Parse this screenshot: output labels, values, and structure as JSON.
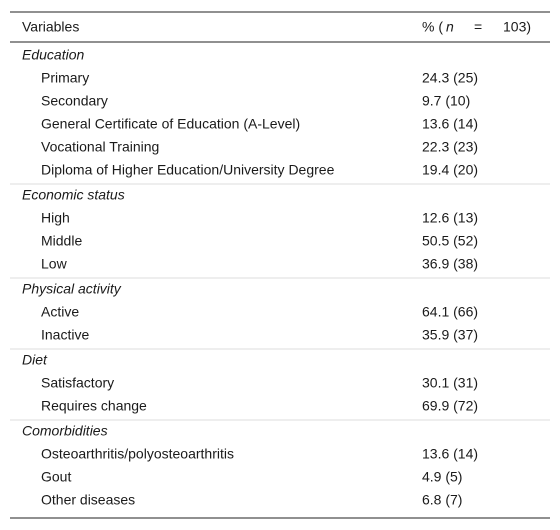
{
  "table": {
    "header": {
      "variables": "Variables",
      "percent": [
        "% (",
        "n",
        "=",
        "103)"
      ]
    },
    "sections": [
      {
        "title": "Education",
        "rows": [
          [
            "Primary",
            "24.3 (25)"
          ],
          [
            "Secondary",
            "9.7 (10)"
          ],
          [
            "General Certificate of Education (A-Level)",
            "13.6 (14)"
          ],
          [
            "Vocational Training",
            "22.3 (23)"
          ],
          [
            "Diploma of Higher Education/University Degree",
            "19.4 (20)"
          ]
        ]
      },
      {
        "title": "Economic status",
        "rows": [
          [
            "High",
            "12.6 (13)"
          ],
          [
            "Middle",
            "50.5 (52)"
          ],
          [
            "Low",
            "36.9 (38)"
          ]
        ]
      },
      {
        "title": "Physical activity",
        "rows": [
          [
            "Active",
            "64.1 (66)"
          ],
          [
            "Inactive",
            "35.9 (37)"
          ]
        ]
      },
      {
        "title": "Diet",
        "rows": [
          [
            "Satisfactory",
            "30.1 (31)"
          ],
          [
            "Requires change",
            "69.9 (72)"
          ]
        ]
      },
      {
        "title": "Comorbidities",
        "rows": [
          [
            "Osteoarthritis/polyosteoarthritis",
            "13.6 (14)"
          ],
          [
            "Gout",
            "4.9 (5)"
          ],
          [
            "Other diseases",
            "6.8 (7)"
          ]
        ]
      }
    ]
  }
}
